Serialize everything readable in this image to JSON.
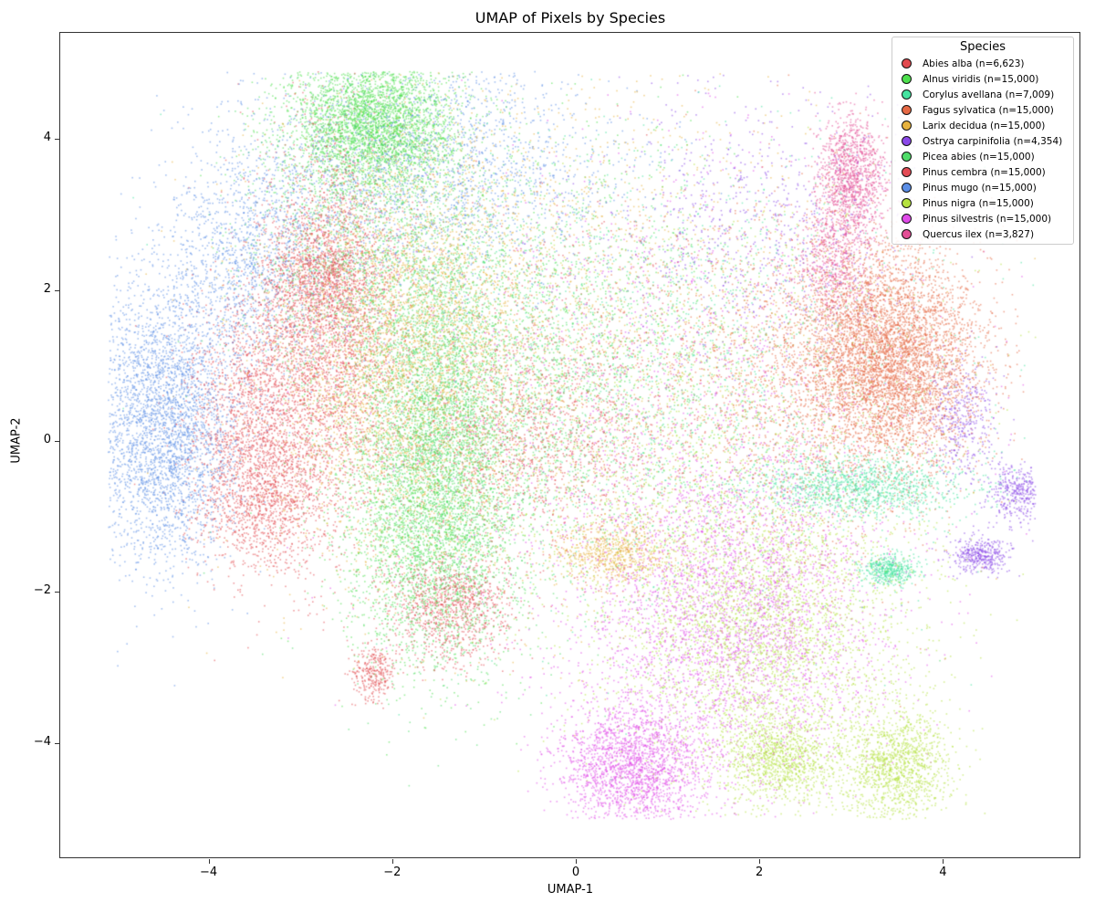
{
  "chart_data": {
    "type": "scatter",
    "title": "UMAP of Pixels by Species",
    "xlabel": "UMAP-1",
    "ylabel": "UMAP-2",
    "xlim": [
      -5.55,
      5.55
    ],
    "ylim": [
      -5.55,
      5.42
    ],
    "xticks": [
      -4,
      -2,
      0,
      2,
      4
    ],
    "xtick_labels": [
      "−4",
      "−2",
      "0",
      "2",
      "4"
    ],
    "yticks": [
      4,
      2,
      0,
      -2,
      -4
    ],
    "ytick_labels": [
      "4",
      "2",
      "0",
      "−2",
      "−4"
    ],
    "grid": false,
    "legend": {
      "title": "Species",
      "position": "upper right"
    },
    "series": [
      {
        "name": "Abies alba",
        "n": 6623,
        "label": "Abies alba (n=6,623)",
        "color": "#e24a4f",
        "clusters": [
          [
            -3.4,
            -0.8,
            0.35,
            0.5,
            0.35
          ],
          [
            -2.2,
            -3.05,
            0.12,
            0.18,
            0.1
          ],
          [
            -2.8,
            2.2,
            0.3,
            0.4,
            0.25
          ],
          [
            -0.6,
            0.0,
            0.8,
            0.6,
            0.3
          ]
        ]
      },
      {
        "name": "Alnus viridis",
        "n": 15000,
        "label": "Alnus viridis (n=15,000)",
        "color": "#4ee04e",
        "clusters": [
          [
            -2.2,
            4.2,
            0.45,
            0.45,
            0.5
          ],
          [
            -1.6,
            -1.2,
            0.5,
            0.9,
            0.3
          ],
          [
            -0.5,
            1.5,
            1.2,
            1.4,
            0.2
          ]
        ]
      },
      {
        "name": "Corylus avellana",
        "n": 7009,
        "label": "Corylus avellana (n=7,009)",
        "color": "#45e3a0",
        "clusters": [
          [
            3.1,
            -0.6,
            0.6,
            0.2,
            0.4
          ],
          [
            3.4,
            -1.7,
            0.15,
            0.1,
            0.15
          ],
          [
            1.0,
            1.0,
            1.6,
            1.6,
            0.45
          ]
        ]
      },
      {
        "name": "Fagus sylvatica",
        "n": 15000,
        "label": "Fagus sylvatica (n=15,000)",
        "color": "#e66a45",
        "clusters": [
          [
            3.4,
            1.1,
            0.5,
            0.7,
            0.75
          ],
          [
            2.4,
            0.8,
            0.8,
            1.3,
            0.25
          ]
        ]
      },
      {
        "name": "Larix decidua",
        "n": 15000,
        "label": "Larix decidua (n=15,000)",
        "color": "#e7b33f",
        "clusters": [
          [
            -1.8,
            1.2,
            0.7,
            1.4,
            0.6
          ],
          [
            0.4,
            -1.5,
            0.3,
            0.2,
            0.1
          ],
          [
            0.0,
            1.5,
            1.6,
            1.8,
            0.3
          ]
        ]
      },
      {
        "name": "Ostrya carpinifolia",
        "n": 4354,
        "label": "Ostrya carpinifolia (n=4,354)",
        "color": "#8b49e8",
        "clusters": [
          [
            4.8,
            -0.7,
            0.15,
            0.2,
            0.2
          ],
          [
            4.4,
            -1.5,
            0.15,
            0.12,
            0.2
          ],
          [
            4.2,
            0.3,
            0.2,
            0.4,
            0.2
          ],
          [
            2.0,
            2.8,
            0.9,
            0.9,
            0.4
          ]
        ]
      },
      {
        "name": "Picea abies",
        "n": 15000,
        "label": "Picea abies (n=15,000)",
        "color": "#4fdc69",
        "clusters": [
          [
            -1.5,
            0.2,
            0.4,
            1.4,
            0.55
          ],
          [
            -2.5,
            2.5,
            0.6,
            1.0,
            0.2
          ],
          [
            -0.3,
            0.5,
            1.2,
            1.5,
            0.25
          ]
        ]
      },
      {
        "name": "Pinus cembra",
        "n": 15000,
        "label": "Pinus cembra (n=15,000)",
        "color": "#e34c55",
        "clusters": [
          [
            -2.7,
            1.5,
            0.4,
            1.3,
            0.45
          ],
          [
            -3.5,
            0.3,
            0.35,
            0.8,
            0.25
          ],
          [
            -1.4,
            -2.2,
            0.35,
            0.35,
            0.15
          ],
          [
            -0.1,
            0.6,
            1.0,
            1.2,
            0.15
          ]
        ]
      },
      {
        "name": "Pinus mugo",
        "n": 15000,
        "label": "Pinus mugo (n=15,000)",
        "color": "#5b8ee6",
        "clusters": [
          [
            -4.5,
            0.2,
            0.4,
            0.9,
            0.5
          ],
          [
            -3.6,
            2.4,
            0.5,
            0.8,
            0.2
          ],
          [
            -1.6,
            3.6,
            1.0,
            0.8,
            0.3
          ]
        ]
      },
      {
        "name": "Pinus nigra",
        "n": 15000,
        "label": "Pinus nigra (n=15,000)",
        "color": "#b5e23f",
        "clusters": [
          [
            2.0,
            -2.5,
            0.8,
            1.0,
            0.45
          ],
          [
            3.5,
            -4.3,
            0.3,
            0.4,
            0.2
          ],
          [
            2.2,
            -4.2,
            0.3,
            0.3,
            0.15
          ],
          [
            1.5,
            0.0,
            1.5,
            1.5,
            0.2
          ]
        ]
      },
      {
        "name": "Pinus silvestris",
        "n": 15000,
        "label": "Pinus silvestris (n=15,000)",
        "color": "#e04be8",
        "clusters": [
          [
            1.7,
            -2.3,
            0.8,
            1.1,
            0.5
          ],
          [
            0.6,
            -4.3,
            0.4,
            0.4,
            0.3
          ],
          [
            1.0,
            0.5,
            1.6,
            1.8,
            0.2
          ]
        ]
      },
      {
        "name": "Quercus ilex",
        "n": 3827,
        "label": "Quercus ilex (n=3,827)",
        "color": "#e34f96",
        "clusters": [
          [
            3.0,
            3.5,
            0.18,
            0.4,
            0.7
          ],
          [
            2.8,
            2.4,
            0.2,
            0.4,
            0.3
          ]
        ]
      }
    ]
  }
}
